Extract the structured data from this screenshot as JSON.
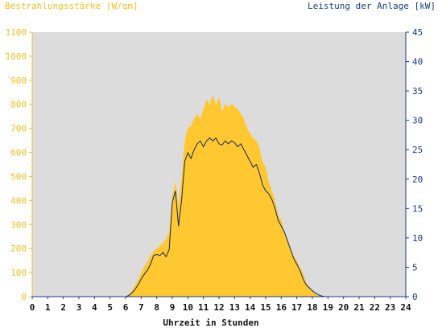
{
  "chart_data": {
    "type": "area",
    "left_axis_title": "Bestrahlungsstärke [W/qm]",
    "right_axis_title": "Leistung der Anlage [kW]",
    "xlabel": "Uhrzeit in Stunden",
    "xlim": [
      0,
      24
    ],
    "x_ticks": [
      "0",
      "1",
      "2",
      "3",
      "4",
      "5",
      "6",
      "7",
      "8",
      "9",
      "10",
      "11",
      "12",
      "13",
      "14",
      "15",
      "16",
      "17",
      "18",
      "19",
      "20",
      "21",
      "22",
      "23",
      "24"
    ],
    "ylim_left": [
      0,
      1100
    ],
    "y_ticks_left": [
      "0",
      "100",
      "200",
      "300",
      "400",
      "500",
      "600",
      "700",
      "800",
      "900",
      "1000",
      "1100"
    ],
    "ylim_right": [
      0,
      45
    ],
    "y_ticks_right": [
      "0",
      "5",
      "10",
      "15",
      "20",
      "25",
      "30",
      "35",
      "40",
      "45"
    ],
    "plot_background": "#dcdcdc",
    "grid": false,
    "series": [
      {
        "name": "Bestrahlungsstärke [W/qm]",
        "axis": "left",
        "style": "area",
        "color": "#ffc830",
        "x": [
          0,
          6.0,
          6.2,
          6.4,
          6.6,
          6.8,
          7.0,
          7.2,
          7.4,
          7.6,
          7.8,
          8.0,
          8.2,
          8.4,
          8.6,
          8.8,
          9.0,
          9.2,
          9.4,
          9.6,
          9.8,
          10.0,
          10.2,
          10.4,
          10.6,
          10.8,
          11.0,
          11.2,
          11.4,
          11.6,
          11.8,
          12.0,
          12.2,
          12.4,
          12.6,
          12.8,
          13.0,
          13.2,
          13.4,
          13.6,
          13.8,
          14.0,
          14.2,
          14.4,
          14.6,
          14.8,
          15.0,
          15.2,
          15.4,
          15.6,
          15.8,
          16.0,
          16.2,
          16.4,
          16.6,
          16.8,
          17.0,
          17.2,
          17.4,
          17.6,
          17.8,
          18.0,
          18.2,
          18.4,
          18.6,
          18.8,
          19.0,
          24
        ],
        "values": [
          0,
          0,
          8,
          25,
          45,
          70,
          100,
          125,
          145,
          170,
          190,
          200,
          210,
          225,
          240,
          270,
          420,
          480,
          380,
          500,
          650,
          700,
          710,
          740,
          760,
          740,
          780,
          820,
          800,
          840,
          800,
          830,
          770,
          800,
          790,
          800,
          790,
          780,
          760,
          740,
          700,
          680,
          660,
          650,
          620,
          560,
          540,
          480,
          440,
          400,
          340,
          320,
          270,
          240,
          200,
          170,
          150,
          120,
          100,
          60,
          40,
          25,
          12,
          5,
          0,
          0,
          0,
          0
        ]
      },
      {
        "name": "Leistung der Anlage [kW]",
        "axis": "right",
        "style": "line",
        "color": "#0f2a55",
        "x": [
          0,
          6.0,
          6.2,
          6.4,
          6.6,
          6.8,
          7.0,
          7.2,
          7.4,
          7.6,
          7.8,
          8.0,
          8.2,
          8.4,
          8.6,
          8.8,
          9.0,
          9.2,
          9.4,
          9.6,
          9.8,
          10.0,
          10.2,
          10.4,
          10.6,
          10.8,
          11.0,
          11.2,
          11.4,
          11.6,
          11.8,
          12.0,
          12.2,
          12.4,
          12.6,
          12.8,
          13.0,
          13.2,
          13.4,
          13.6,
          13.8,
          14.0,
          14.2,
          14.4,
          14.6,
          14.8,
          15.0,
          15.2,
          15.4,
          15.6,
          15.8,
          16.0,
          16.2,
          16.4,
          16.6,
          16.8,
          17.0,
          17.2,
          17.4,
          17.6,
          17.8,
          18.0,
          18.2,
          18.4,
          18.6,
          18.8,
          19.0,
          24
        ],
        "values": [
          0,
          0,
          0.2,
          0.6,
          1.2,
          2.0,
          3.0,
          3.8,
          4.5,
          5.5,
          7.0,
          7.2,
          7.0,
          7.5,
          6.8,
          8.0,
          16.0,
          18.0,
          12.0,
          16.5,
          23.0,
          24.5,
          23.5,
          25.0,
          26.0,
          26.5,
          25.5,
          26.5,
          27.0,
          26.5,
          27.0,
          26.0,
          25.8,
          26.5,
          26.0,
          26.5,
          26.2,
          25.5,
          26.0,
          25.0,
          24.0,
          23.0,
          22.0,
          22.5,
          21.0,
          19.0,
          18.0,
          17.5,
          16.5,
          15.0,
          13.0,
          12.0,
          11.0,
          9.5,
          8.0,
          6.5,
          5.5,
          4.5,
          3.0,
          2.0,
          1.5,
          1.0,
          0.6,
          0.3,
          0.1,
          0,
          0,
          0
        ]
      }
    ]
  }
}
